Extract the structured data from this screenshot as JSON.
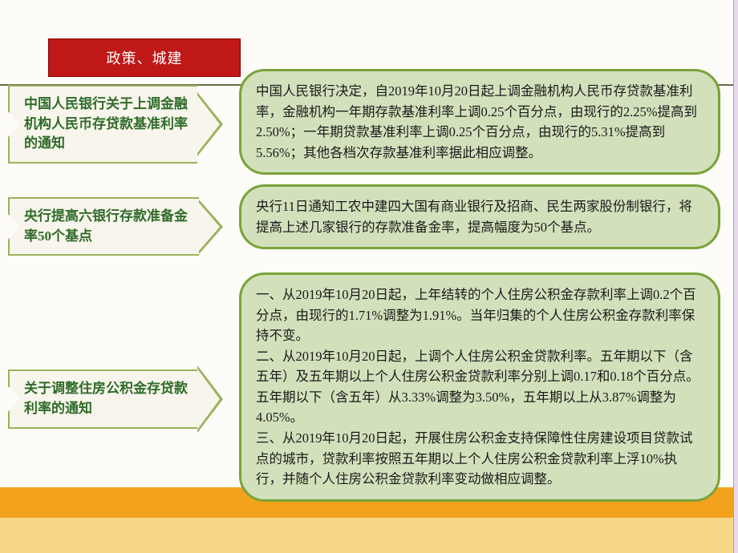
{
  "colors": {
    "header_bg": "#c01717",
    "header_text": "#ffffff",
    "arrow_border": "#9ab15a",
    "arrow_fill": "#f8f6ec",
    "arrow_text": "#2f6b2a",
    "box_fill": "#d2e1bb",
    "box_border": "#7aa239",
    "body_text": "#1a1a1a",
    "page_bg": "#fdfcf8",
    "band_orange": "#f3a21d",
    "band_yellow": "#f7d888"
  },
  "typography": {
    "header_fontsize": 18,
    "label_fontsize": 17,
    "body_fontsize": 16.5,
    "line_height": 1.55,
    "font_family": "SimSun"
  },
  "header": {
    "title": "政策、城建"
  },
  "items": [
    {
      "label": "中国人民银行关于上调金融机构人民币存贷款基准利率的通知",
      "body": "中国人民银行决定，自2019年10月20日起上调金融机构人民币存贷款基准利率，金融机构一年期存款基准利率上调0.25个百分点，由现行的2.25%提高到2.50%；一年期贷款基准利率上调0.25个百分点，由现行的5.31%提高到5.56%；其他各档次存款基准利率据此相应调整。"
    },
    {
      "label": "央行提高六银行存款准备金率50个基点",
      "body": "央行11日通知工农中建四大国有商业银行及招商、民生两家股份制银行，将提高上述几家银行的存款准备金率，提高幅度为50个基点。"
    },
    {
      "label": "关于调整住房公积金存贷款利率的通知",
      "body": "一、从2019年10月20日起，上年结转的个人住房公积金存款利率上调0.2个百分点，由现行的1.71%调整为1.91%。当年归集的个人住房公积金存款利率保持不变。\n二、从2019年10月20日起，上调个人住房公积金贷款利率。五年期以下（含五年）及五年期以上个人住房公积金贷款利率分别上调0.17和0.18个百分点。五年期以下（含五年）从3.33%调整为3.50%，五年期以上从3.87%调整为4.05%。\n三、从2019年10月20日起，开展住房公积金支持保障性住房建设项目贷款试点的城市，贷款利率按照五年期以上个人住房公积金贷款利率上浮10%执行，并随个人住房公积金贷款利率变动做相应调整。"
    }
  ]
}
